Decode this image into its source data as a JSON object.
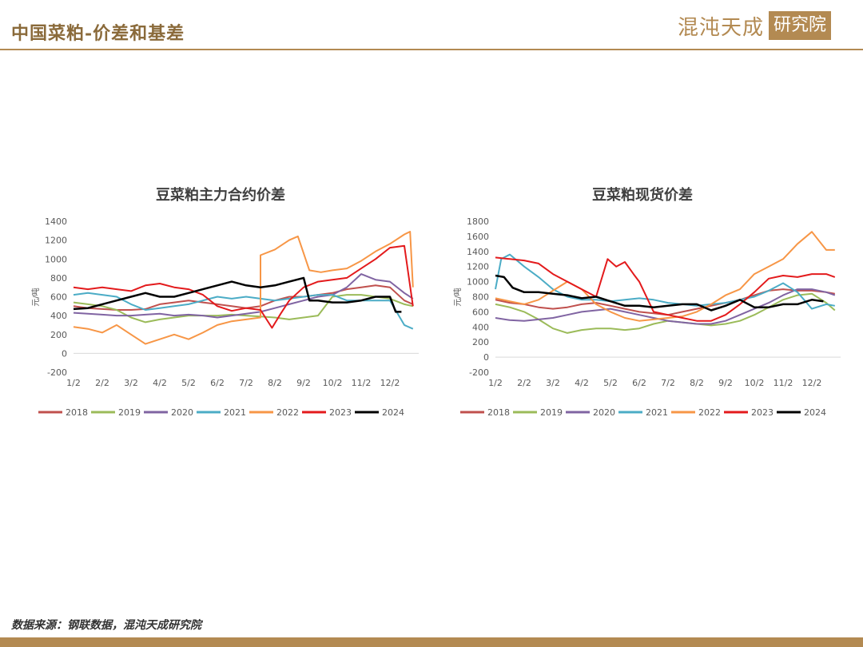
{
  "header": {
    "title": "中国菜粕-价差和基差",
    "logo_text": "混沌天成",
    "logo_box": "研究院"
  },
  "source": "数据来源：钢联数据，混沌天成研究院",
  "colors": {
    "accent": "#b38a52",
    "2018": "#c0504d",
    "2019": "#9bbb59",
    "2020": "#8064a2",
    "2021": "#4bacc6",
    "2022": "#f79646",
    "2023": "#e31a1c",
    "2024": "#000000"
  },
  "chart_data": [
    {
      "type": "line",
      "title": "豆菜粕主力合约价差",
      "ylabel": "元/吨",
      "ylim": [
        -200,
        1400
      ],
      "yticks": [
        -200,
        0,
        200,
        400,
        600,
        800,
        1000,
        1200,
        1400
      ],
      "xticks": [
        "1/2",
        "2/2",
        "3/2",
        "4/2",
        "5/2",
        "6/2",
        "7/2",
        "8/2",
        "9/2",
        "10/2",
        "11/2",
        "12/2"
      ],
      "legend": "bottom",
      "series": [
        {
          "name": "2018",
          "x": [
            0,
            0.5,
            1,
            1.5,
            2,
            2.5,
            3,
            3.5,
            4,
            4.5,
            5,
            5.5,
            6,
            6.5,
            7,
            7.5,
            8,
            8.5,
            9,
            9.5,
            10,
            10.5,
            11,
            11.5,
            11.8
          ],
          "values": [
            500,
            480,
            470,
            460,
            460,
            470,
            520,
            540,
            560,
            540,
            520,
            500,
            480,
            500,
            560,
            600,
            600,
            620,
            640,
            680,
            700,
            720,
            700,
            560,
            520
          ]
        },
        {
          "name": "2019",
          "x": [
            0,
            0.5,
            1,
            1.5,
            2,
            2.5,
            3,
            3.5,
            4,
            4.5,
            5,
            5.5,
            6,
            6.5,
            7,
            7.5,
            8,
            8.5,
            9,
            9.5,
            10,
            10.5,
            11,
            11.5,
            11.8
          ],
          "values": [
            540,
            520,
            500,
            460,
            380,
            330,
            360,
            380,
            400,
            400,
            400,
            410,
            400,
            390,
            380,
            360,
            380,
            400,
            600,
            620,
            620,
            600,
            580,
            520,
            500
          ]
        },
        {
          "name": "2020",
          "x": [
            0,
            0.5,
            1,
            1.5,
            2,
            2.5,
            3,
            3.5,
            4,
            4.5,
            5,
            5.5,
            6,
            6.5,
            7,
            7.5,
            8,
            8.5,
            9,
            9.5,
            10,
            10.5,
            11,
            11.5,
            11.8
          ],
          "values": [
            430,
            420,
            410,
            400,
            400,
            410,
            420,
            400,
            410,
            400,
            380,
            400,
            420,
            440,
            480,
            520,
            560,
            600,
            620,
            700,
            840,
            780,
            760,
            640,
            580
          ]
        },
        {
          "name": "2021",
          "x": [
            0,
            0.5,
            1,
            1.5,
            2,
            2.5,
            3,
            3.5,
            4,
            4.5,
            5,
            5.5,
            6,
            6.5,
            7,
            7.5,
            8,
            8.5,
            9,
            9.5,
            10,
            10.5,
            11,
            11.5,
            11.8
          ],
          "values": [
            620,
            640,
            620,
            600,
            520,
            460,
            480,
            500,
            520,
            560,
            600,
            580,
            600,
            580,
            560,
            580,
            600,
            620,
            620,
            560,
            560,
            560,
            560,
            300,
            260
          ]
        },
        {
          "name": "2022",
          "x": [
            0,
            0.5,
            1,
            1.5,
            2,
            2.5,
            3,
            3.5,
            4,
            4.5,
            5,
            5.5,
            6,
            6.5,
            6.5,
            7,
            7.5,
            7.8,
            8.2,
            8.6,
            9,
            9.5,
            10,
            10.5,
            11,
            11.5,
            11.7,
            11.8
          ],
          "values": [
            280,
            260,
            220,
            300,
            200,
            100,
            150,
            200,
            150,
            220,
            300,
            340,
            360,
            380,
            1040,
            1100,
            1200,
            1240,
            880,
            860,
            880,
            900,
            980,
            1080,
            1160,
            1260,
            1290,
            700
          ]
        },
        {
          "name": "2023",
          "x": [
            0,
            0.5,
            1,
            1.5,
            2,
            2.5,
            3,
            3.5,
            4,
            4.5,
            5,
            5.5,
            6,
            6.5,
            6.9,
            7.2,
            7.5,
            8,
            8.5,
            9,
            9.5,
            10,
            10.5,
            11,
            11.5,
            11.8
          ],
          "values": [
            700,
            680,
            700,
            680,
            660,
            720,
            740,
            700,
            680,
            620,
            500,
            450,
            480,
            460,
            270,
            420,
            560,
            700,
            760,
            780,
            800,
            900,
            1000,
            1120,
            1140,
            500
          ]
        },
        {
          "name": "2024",
          "x": [
            0,
            0.5,
            1,
            1.5,
            2,
            2.5,
            3,
            3.5,
            4,
            4.5,
            5,
            5.5,
            6,
            6.5,
            7,
            7.5,
            8,
            8.2,
            8.5,
            9,
            9.5,
            10,
            10.5,
            11,
            11.2,
            11.4
          ],
          "values": [
            470,
            480,
            520,
            560,
            600,
            640,
            600,
            600,
            640,
            680,
            720,
            760,
            720,
            700,
            720,
            760,
            800,
            560,
            560,
            540,
            540,
            560,
            600,
            600,
            440,
            440
          ]
        }
      ]
    },
    {
      "type": "line",
      "title": "豆菜粕现货价差",
      "ylabel": "元/吨",
      "ylim": [
        -200,
        1800
      ],
      "yticks": [
        -200,
        0,
        200,
        400,
        600,
        800,
        1000,
        1200,
        1400,
        1600,
        1800
      ],
      "xticks": [
        "1/2",
        "2/2",
        "3/2",
        "4/2",
        "5/2",
        "6/2",
        "7/2",
        "8/2",
        "9/2",
        "10/2",
        "11/2",
        "12/2"
      ],
      "legend": "bottom",
      "series": [
        {
          "name": "2018",
          "x": [
            0,
            0.5,
            1,
            1.5,
            2,
            2.5,
            3,
            3.5,
            4,
            4.5,
            5,
            5.5,
            6,
            6.5,
            7,
            7.5,
            8,
            8.5,
            9,
            9.5,
            10,
            10.5,
            11,
            11.5,
            11.8
          ],
          "values": [
            760,
            720,
            700,
            660,
            640,
            660,
            700,
            720,
            680,
            640,
            600,
            580,
            560,
            600,
            640,
            680,
            720,
            760,
            820,
            880,
            900,
            880,
            880,
            860,
            840
          ]
        },
        {
          "name": "2019",
          "x": [
            0,
            0.5,
            1,
            1.5,
            2,
            2.5,
            3,
            3.5,
            4,
            4.5,
            5,
            5.5,
            6,
            6.5,
            7,
            7.5,
            8,
            8.5,
            9,
            9.5,
            10,
            10.5,
            11,
            11.5,
            11.8
          ],
          "values": [
            700,
            660,
            600,
            500,
            380,
            320,
            360,
            380,
            380,
            360,
            380,
            440,
            480,
            460,
            440,
            420,
            440,
            480,
            560,
            660,
            760,
            820,
            840,
            720,
            620
          ]
        },
        {
          "name": "2020",
          "x": [
            0,
            0.5,
            1,
            1.5,
            2,
            2.5,
            3,
            3.5,
            4,
            4.5,
            5,
            5.5,
            6,
            6.5,
            7,
            7.5,
            8,
            8.5,
            9,
            9.5,
            10,
            10.5,
            11,
            11.5,
            11.8
          ],
          "values": [
            520,
            490,
            480,
            500,
            520,
            560,
            600,
            620,
            640,
            600,
            560,
            520,
            480,
            460,
            440,
            440,
            480,
            560,
            640,
            720,
            820,
            900,
            900,
            860,
            820
          ]
        },
        {
          "name": "2021",
          "x": [
            0,
            0.2,
            0.5,
            1,
            1.5,
            2,
            2.5,
            3,
            3.5,
            4,
            4.5,
            5,
            5.5,
            6,
            6.5,
            7,
            7.5,
            8,
            8.5,
            9,
            9.5,
            10,
            10.5,
            11,
            11.5,
            11.8
          ],
          "values": [
            900,
            1300,
            1360,
            1200,
            1060,
            900,
            800,
            760,
            760,
            740,
            760,
            780,
            760,
            720,
            700,
            680,
            700,
            720,
            760,
            800,
            880,
            980,
            860,
            640,
            700,
            680
          ]
        },
        {
          "name": "2022",
          "x": [
            0,
            0.5,
            1,
            1.5,
            2,
            2.5,
            3,
            3.5,
            4,
            4.5,
            5,
            5.5,
            6,
            6.5,
            7,
            7.5,
            8,
            8.5,
            9,
            9.5,
            10,
            10.5,
            11,
            11.5,
            11.8
          ],
          "values": [
            780,
            740,
            700,
            760,
            880,
            1000,
            900,
            700,
            600,
            520,
            480,
            500,
            520,
            540,
            600,
            700,
            820,
            900,
            1100,
            1200,
            1300,
            1500,
            1660,
            1420,
            1420
          ]
        },
        {
          "name": "2023",
          "x": [
            0,
            0.5,
            1,
            1.5,
            2,
            2.5,
            3,
            3.5,
            3.9,
            4.2,
            4.5,
            4.8,
            5,
            5.5,
            6,
            6.5,
            7,
            7.5,
            8,
            8.5,
            9,
            9.5,
            10,
            10.5,
            11,
            11.5,
            11.8
          ],
          "values": [
            1320,
            1300,
            1280,
            1240,
            1100,
            1000,
            900,
            800,
            1300,
            1200,
            1260,
            1100,
            1000,
            600,
            560,
            520,
            480,
            480,
            560,
            700,
            860,
            1040,
            1080,
            1060,
            1100,
            1100,
            1060
          ]
        },
        {
          "name": "2024",
          "x": [
            0,
            0.3,
            0.6,
            1,
            1.5,
            2,
            2.5,
            3,
            3.5,
            4,
            4.5,
            5,
            5.5,
            6,
            6.5,
            7,
            7.5,
            8,
            8.5,
            9,
            9.5,
            10,
            10.5,
            11,
            11.4
          ],
          "values": [
            1080,
            1060,
            920,
            860,
            860,
            840,
            820,
            780,
            800,
            740,
            680,
            680,
            660,
            680,
            700,
            700,
            620,
            680,
            760,
            660,
            660,
            700,
            700,
            760,
            740
          ]
        }
      ]
    }
  ],
  "legend_labels": [
    "2018",
    "2019",
    "2020",
    "2021",
    "2022",
    "2023",
    "2024"
  ],
  "charts_ui": {
    "left_title": "豆菜粕主力合约价差",
    "right_title": "豆菜粕现货价差",
    "unit": "元/吨"
  }
}
